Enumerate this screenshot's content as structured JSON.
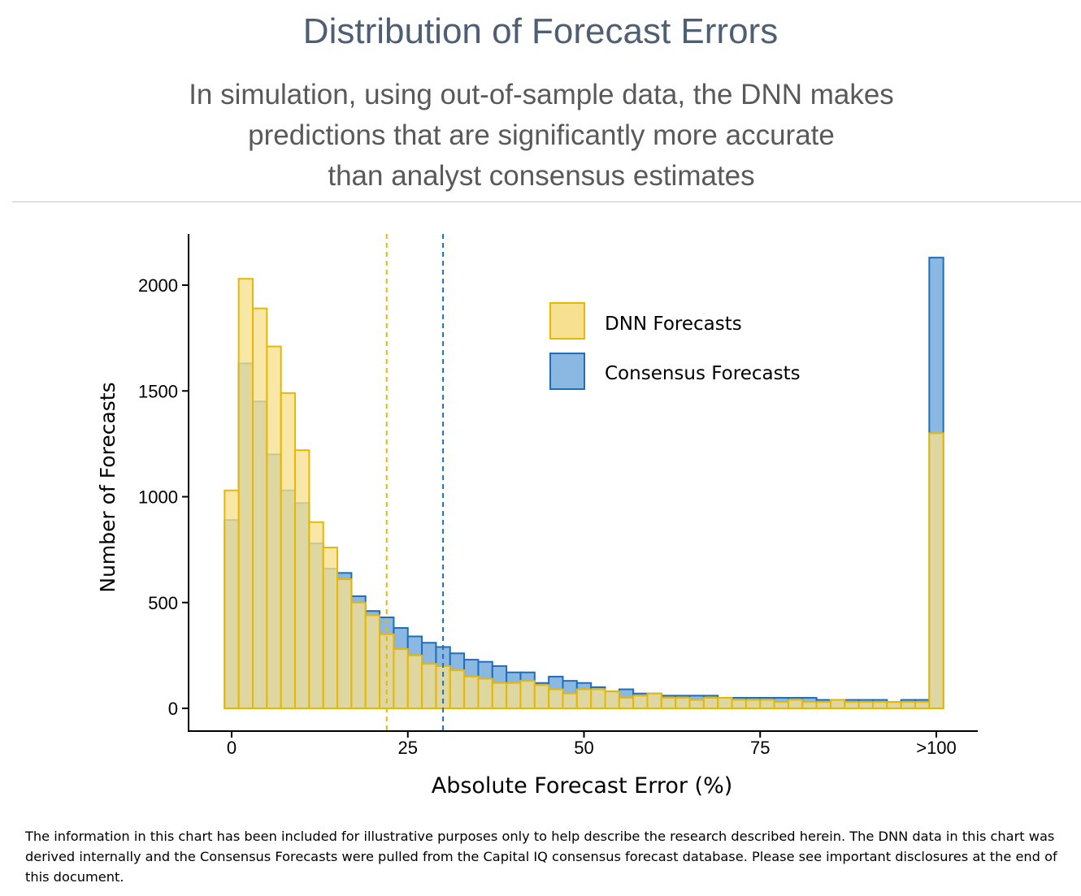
{
  "header": {
    "title": "Distribution of Forecast Errors",
    "subtitle": "In simulation, using out-of-sample data, the DNN makes\npredictions that are significantly more accurate\nthan analyst consensus estimates"
  },
  "chart_data": {
    "type": "histogram",
    "xlabel": "Absolute Forecast Error (%)",
    "ylabel": "Number of Forecasts",
    "x_ticks": [
      {
        "value": 0,
        "label": "0"
      },
      {
        "value": 25,
        "label": "25"
      },
      {
        "value": 50,
        "label": "50"
      },
      {
        "value": 75,
        "label": "75"
      },
      {
        "value": 100,
        "label": ">100"
      }
    ],
    "y_ticks": [
      0,
      500,
      1000,
      1500,
      2000
    ],
    "ylim": [
      0,
      2200
    ],
    "bin_width": 2,
    "bin_start": -1,
    "grid": false,
    "legend_position": "top-right",
    "series": [
      {
        "name": "DNN Forecasts",
        "fill": "#f7e08f",
        "stroke": "#e8b800",
        "mean_line": 22,
        "values": [
          1030,
          2030,
          1890,
          1710,
          1490,
          1220,
          880,
          760,
          610,
          500,
          440,
          350,
          280,
          250,
          210,
          200,
          180,
          150,
          140,
          120,
          120,
          130,
          110,
          90,
          70,
          90,
          90,
          80,
          50,
          60,
          70,
          50,
          50,
          40,
          50,
          50,
          40,
          40,
          40,
          30,
          40,
          30,
          30,
          40,
          30,
          30,
          30,
          30,
          30,
          30,
          1300
        ]
      },
      {
        "name": "Consensus Forecasts",
        "fill": "#8bb8e2",
        "stroke": "#1f6fb8",
        "mean_line": 30,
        "values": [
          890,
          1630,
          1450,
          1200,
          1030,
          970,
          780,
          660,
          640,
          530,
          460,
          430,
          380,
          340,
          310,
          290,
          260,
          230,
          220,
          200,
          170,
          170,
          120,
          150,
          130,
          120,
          100,
          80,
          90,
          70,
          70,
          60,
          60,
          60,
          60,
          50,
          50,
          50,
          50,
          50,
          50,
          50,
          40,
          40,
          40,
          40,
          40,
          30,
          40,
          40,
          2130
        ]
      }
    ]
  },
  "footnote": "The information in this chart has been included for illustrative purposes only to help describe the research described herein. The DNN data in this chart was derived internally and the Consensus Forecasts were pulled from the Capital IQ consensus forecast database. Please see important disclosures at the end of this document."
}
